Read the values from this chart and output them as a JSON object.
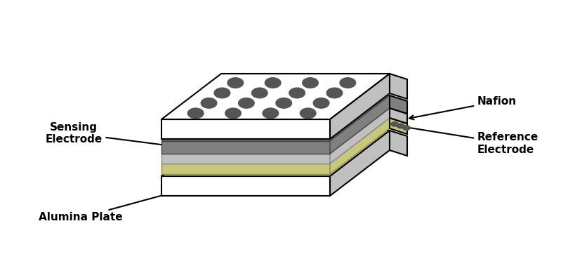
{
  "bg_color": "#ffffff",
  "top_plate_face": "#ffffff",
  "top_plate_side": "#c8c8c8",
  "top_plate_edge": "#000000",
  "dark_elec_color": "#808080",
  "light_elec_color": "#c0c0c0",
  "nafion_color": "#c8c87a",
  "nafion_edge": "#aaaaaa",
  "bottom_plate_face": "#ffffff",
  "bottom_plate_side": "#c8c8c8",
  "bottom_plate_edge": "#000000",
  "hole_color": "#555555",
  "label_fontsize": 11,
  "label_fontweight": "bold",
  "labels": {
    "sensing_electrode": "Sensing\nElectrode",
    "nafion": "Nafion",
    "reference_electrode": "Reference\nElectrode",
    "alumina_plate": "Alumina Plate"
  }
}
